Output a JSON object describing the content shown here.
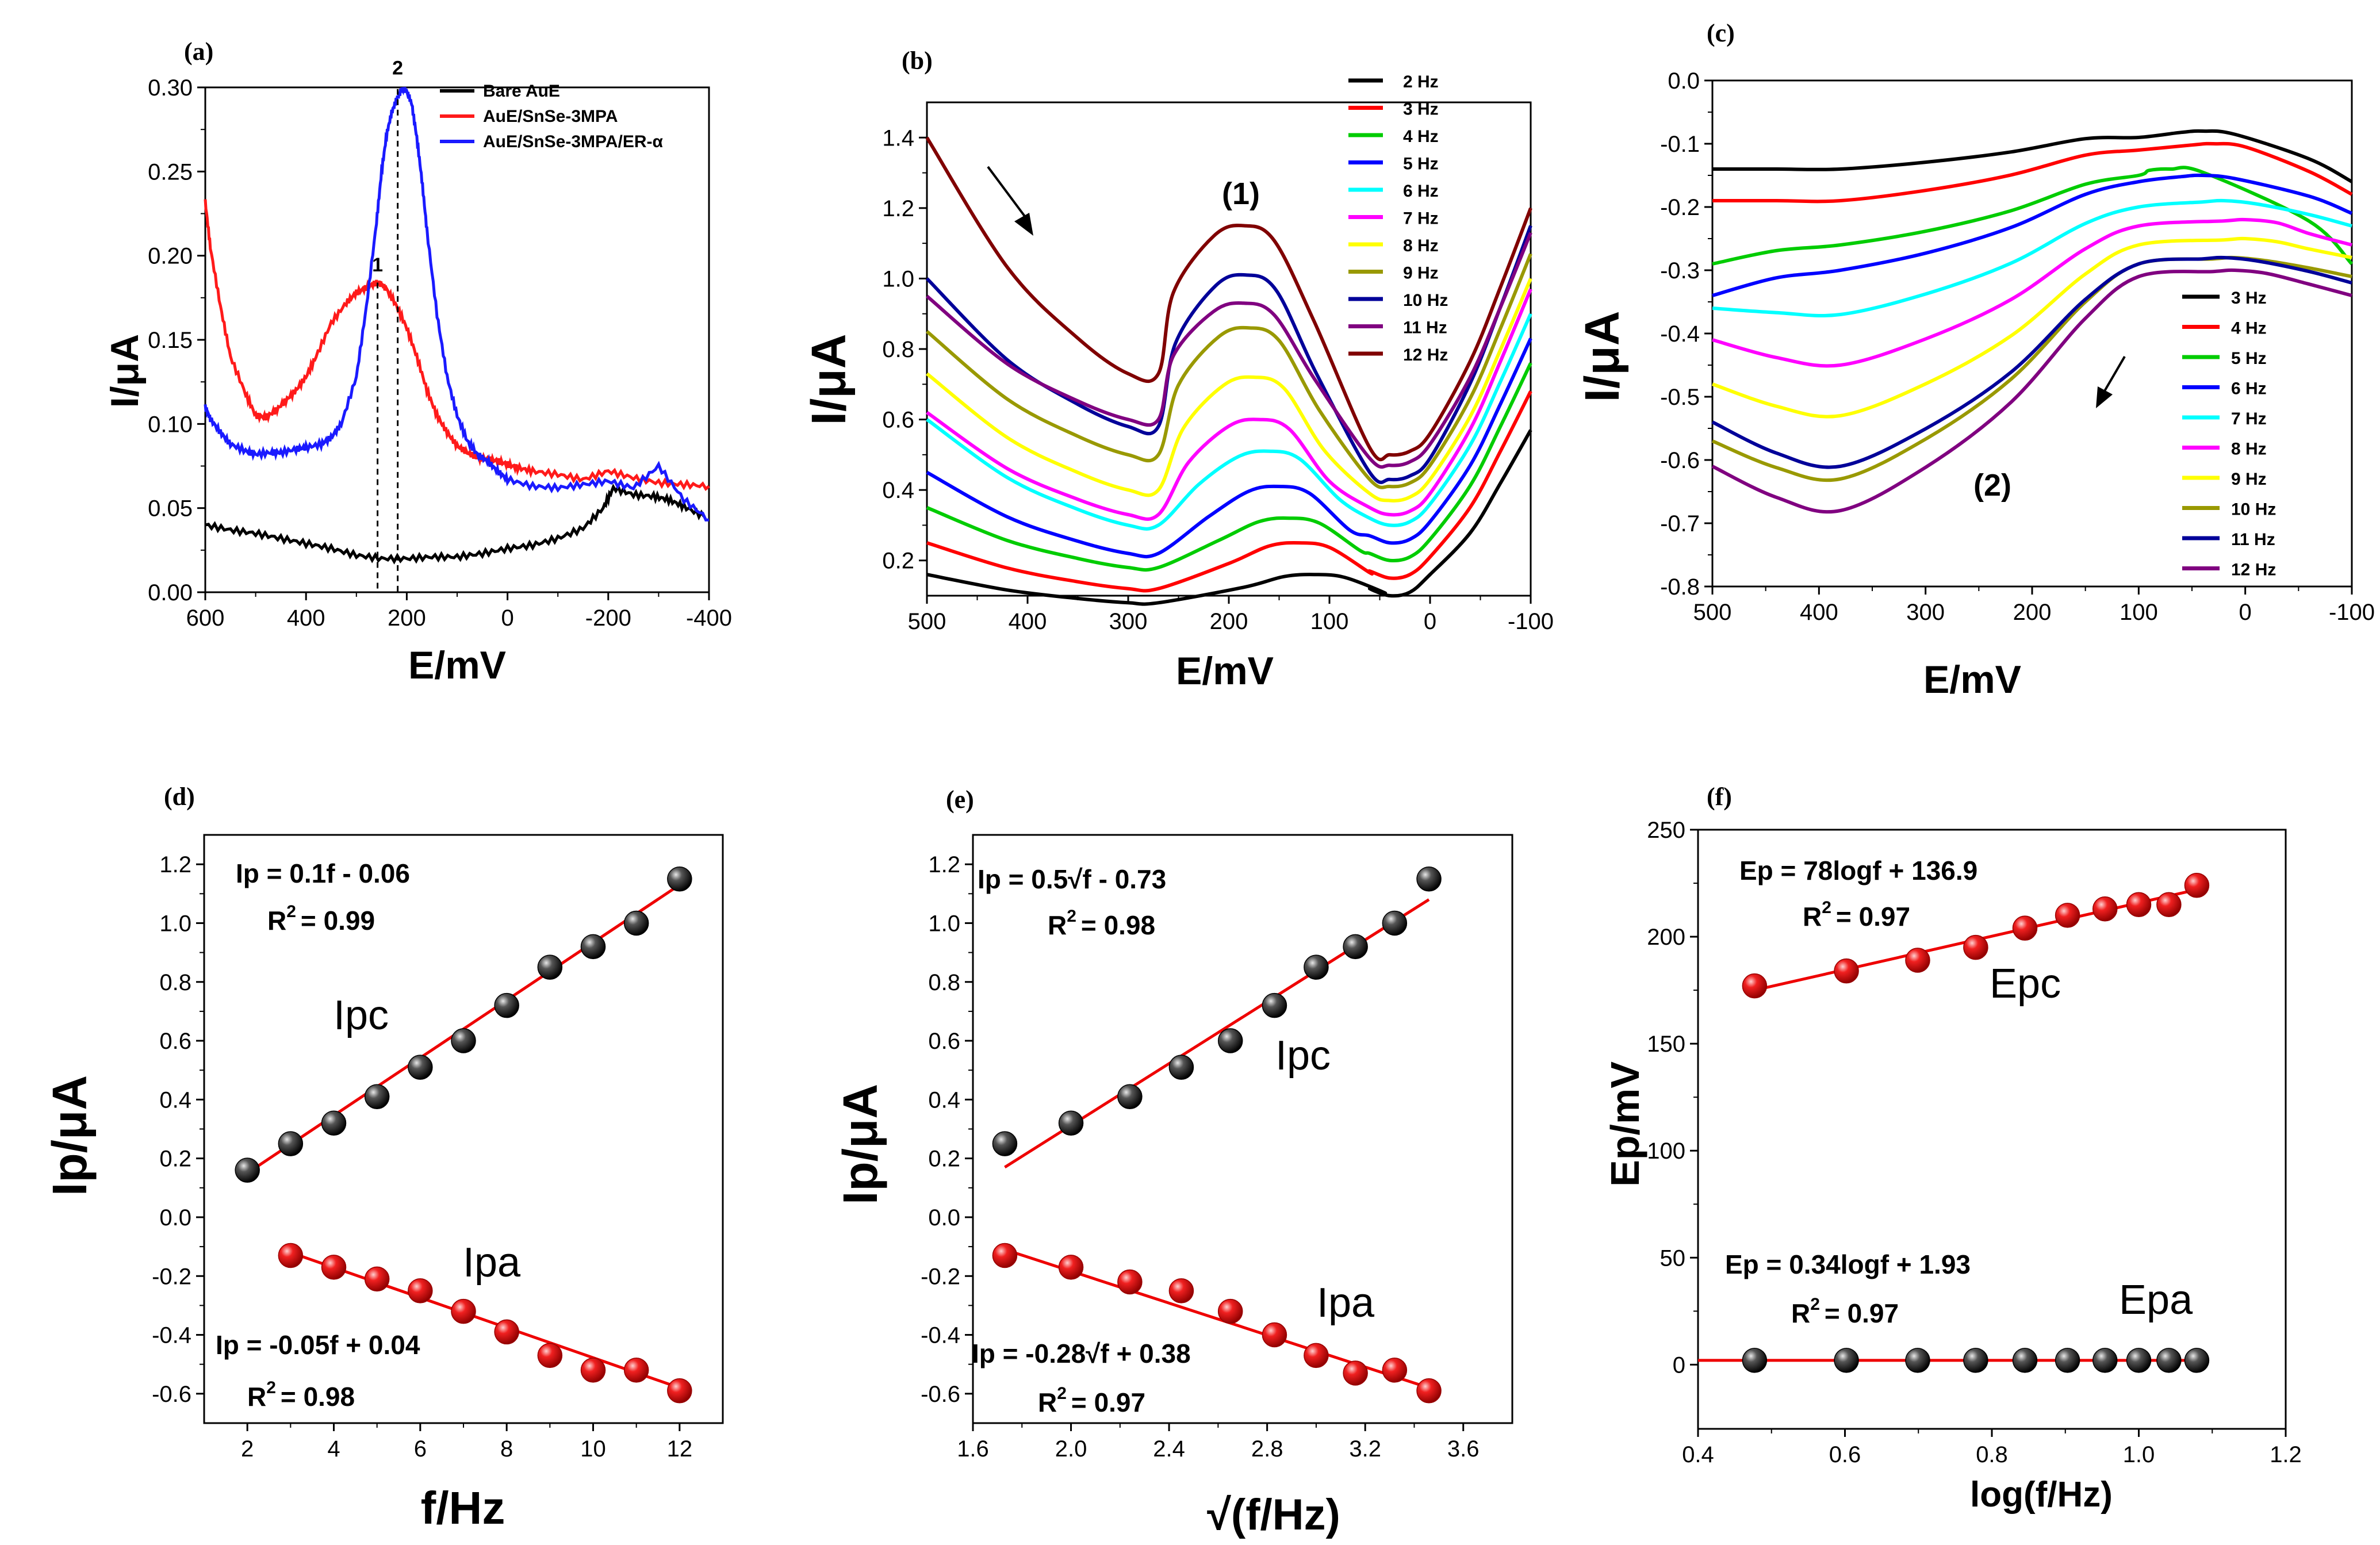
{
  "colors": {
    "black": "#000000",
    "red": "#ff1a1a",
    "blue": "#1a1aff",
    "ball_black": "#111111",
    "ball_red": "#e6191e",
    "fit": "#ee0000"
  },
  "chart_data": [
    {
      "panel": "(a)",
      "type": "line",
      "xlabel": "E/mV",
      "ylabel": "I/μA",
      "xlim": [
        600,
        -400
      ],
      "ylim": [
        0,
        0.3
      ],
      "xticks": [
        600,
        400,
        200,
        0,
        -200,
        -400
      ],
      "yticks": [
        0,
        0.05,
        0.1,
        0.15,
        0.2,
        0.25,
        0.3
      ],
      "ytick_labels": [
        "0.00",
        "0.05",
        "0.10",
        "0.15",
        "0.20",
        "0.25",
        "0.30"
      ],
      "series": [
        {
          "name": "Bare AuE",
          "color": "#000000",
          "x": [
            600,
            550,
            500,
            450,
            400,
            350,
            300,
            250,
            200,
            150,
            100,
            50,
            0,
            -50,
            -100,
            -150,
            -190,
            -210,
            -250,
            -290,
            -320,
            -350,
            -390
          ],
          "y": [
            0.04,
            0.037,
            0.035,
            0.032,
            0.029,
            0.026,
            0.022,
            0.02,
            0.02,
            0.021,
            0.021,
            0.023,
            0.026,
            0.028,
            0.032,
            0.038,
            0.05,
            0.062,
            0.058,
            0.057,
            0.055,
            0.051,
            0.045
          ]
        },
        {
          "name": "AuE/SnSe-3MPA",
          "color": "#ff1a1a",
          "x": [
            600,
            590,
            570,
            550,
            520,
            500,
            480,
            460,
            440,
            420,
            400,
            380,
            350,
            320,
            300,
            280,
            260,
            250,
            240,
            220,
            200,
            180,
            160,
            140,
            120,
            100,
            80,
            60,
            40,
            20,
            0,
            -20,
            -50,
            -100,
            -150,
            -200,
            -250,
            -300,
            -350,
            -400
          ],
          "y": [
            0.232,
            0.205,
            0.17,
            0.14,
            0.118,
            0.105,
            0.104,
            0.108,
            0.114,
            0.12,
            0.128,
            0.14,
            0.16,
            0.172,
            0.178,
            0.181,
            0.184,
            0.183,
            0.18,
            0.17,
            0.157,
            0.14,
            0.12,
            0.105,
            0.095,
            0.087,
            0.083,
            0.08,
            0.079,
            0.078,
            0.076,
            0.074,
            0.072,
            0.07,
            0.067,
            0.072,
            0.068,
            0.065,
            0.064,
            0.063
          ]
        },
        {
          "name": "AuE/SnSe-3MPA/ER-α",
          "color": "#1a1aff",
          "x": [
            600,
            590,
            570,
            550,
            520,
            500,
            470,
            450,
            420,
            400,
            370,
            350,
            330,
            300,
            280,
            260,
            250,
            240,
            230,
            220,
            210,
            200,
            190,
            180,
            170,
            160,
            140,
            120,
            100,
            80,
            60,
            40,
            20,
            0,
            -50,
            -100,
            -150,
            -200,
            -250,
            -300,
            -350,
            -400
          ],
          "y": [
            0.11,
            0.103,
            0.095,
            0.088,
            0.084,
            0.082,
            0.083,
            0.083,
            0.085,
            0.086,
            0.088,
            0.092,
            0.1,
            0.128,
            0.17,
            0.22,
            0.25,
            0.272,
            0.285,
            0.293,
            0.299,
            0.298,
            0.29,
            0.27,
            0.245,
            0.215,
            0.165,
            0.128,
            0.105,
            0.09,
            0.082,
            0.078,
            0.072,
            0.067,
            0.063,
            0.062,
            0.064,
            0.066,
            0.062,
            0.075,
            0.055,
            0.043
          ]
        }
      ],
      "legend": [
        "Bare AuE",
        "AuE/SnSe-3MPA",
        "AuE/SnSe-3MPA/ER-α"
      ],
      "annotations": [
        {
          "text": "1",
          "x": 258,
          "y": 0.188
        },
        {
          "text": "2",
          "x": 218,
          "y": 0.305
        }
      ],
      "guides": [
        {
          "x": 258,
          "y": 0.184
        },
        {
          "x": 218,
          "y": 0.299
        }
      ]
    },
    {
      "panel": "(b)",
      "type": "line",
      "xlabel": "E/mV",
      "ylabel": "I/μA",
      "xlim": [
        500,
        -100
      ],
      "ylim": [
        0.1,
        1.5
      ],
      "xticks": [
        500,
        400,
        300,
        200,
        100,
        0,
        -100
      ],
      "yticks": [
        0.2,
        0.4,
        0.6,
        0.8,
        1.0,
        1.2,
        1.4
      ],
      "ytick_labels": [
        "0.2",
        "0.4",
        "0.6",
        "0.8",
        "1.0",
        "1.2",
        "1.4"
      ],
      "legend": [
        "2 Hz",
        "3 Hz",
        "4 Hz",
        "5 Hz",
        "6 Hz",
        "7 Hz",
        "8 Hz",
        "9 Hz",
        "10 Hz",
        "11 Hz",
        "12 Hz"
      ],
      "series_colors": [
        "#000000",
        "#ff0000",
        "#00cc00",
        "#0000ff",
        "#00ffff",
        "#ff00ff",
        "#ffff00",
        "#999900",
        "#000099",
        "#800080",
        "#800000"
      ],
      "peak_E": [
        115,
        130,
        140,
        150,
        160,
        170,
        175,
        180,
        183,
        185,
        185
      ],
      "peak_I": [
        0.16,
        0.25,
        0.32,
        0.41,
        0.51,
        0.6,
        0.72,
        0.86,
        1.01,
        0.93,
        1.15
      ],
      "left_I": [
        0.16,
        0.25,
        0.35,
        0.45,
        0.6,
        0.62,
        0.73,
        0.85,
        1.0,
        0.95,
        1.4
      ],
      "base_I": [
        0.08,
        0.12,
        0.18,
        0.22,
        0.3,
        0.33,
        0.4,
        0.5,
        0.58,
        0.6,
        0.73
      ],
      "min_I": [
        0.1,
        0.15,
        0.2,
        0.25,
        0.3,
        0.33,
        0.37,
        0.41,
        0.43,
        0.47,
        0.5
      ],
      "right_I": [
        0.57,
        0.68,
        0.76,
        0.83,
        0.9,
        0.97,
        1.0,
        1.07,
        1.15,
        1.13,
        1.2
      ],
      "annotation": "(1)"
    },
    {
      "panel": "(c)",
      "type": "line",
      "xlabel": "E/mV",
      "ylabel": "I/μA",
      "xlim": [
        500,
        -100
      ],
      "ylim": [
        -0.8,
        0
      ],
      "xticks": [
        500,
        400,
        300,
        200,
        100,
        0,
        -100
      ],
      "yticks": [
        -0.8,
        -0.7,
        -0.6,
        -0.5,
        -0.4,
        -0.3,
        -0.2,
        -0.1,
        0
      ],
      "ytick_labels": [
        "-0.8",
        "-0.7",
        "-0.6",
        "-0.5",
        "-0.4",
        "-0.3",
        "-0.2",
        "-0.1",
        "0.0"
      ],
      "legend": [
        "3 Hz",
        "4 Hz",
        "5 Hz",
        "6 Hz",
        "7 Hz",
        "8 Hz",
        "9 Hz",
        "10 Hz",
        "11 Hz",
        "12 Hz"
      ],
      "series_colors": [
        "#000000",
        "#ff0000",
        "#00cc00",
        "#0000ff",
        "#00ffff",
        "#ff00ff",
        "#ffff00",
        "#999900",
        "#000099",
        "#800080"
      ],
      "start_I": [
        -0.14,
        -0.19,
        -0.29,
        -0.34,
        -0.36,
        -0.41,
        -0.48,
        -0.57,
        -0.54,
        -0.61
      ],
      "valley_I": [
        -0.14,
        -0.19,
        -0.26,
        -0.3,
        -0.37,
        -0.45,
        -0.53,
        -0.63,
        -0.61,
        -0.68
      ],
      "top_E": [
        40,
        30,
        70,
        40,
        20,
        0,
        0,
        10,
        20,
        10
      ],
      "top_I": [
        -0.08,
        -0.1,
        -0.14,
        -0.15,
        -0.19,
        -0.22,
        -0.25,
        -0.28,
        -0.28,
        -0.3
      ],
      "end_I": [
        -0.16,
        -0.18,
        -0.29,
        -0.21,
        -0.23,
        -0.26,
        -0.28,
        -0.31,
        -0.32,
        -0.34
      ],
      "annotation": "(2)"
    },
    {
      "panel": "(d)",
      "type": "scatter",
      "xlabel": "f/Hz",
      "ylabel": "Ip/μA",
      "xlim": [
        1,
        13
      ],
      "ylim": [
        -0.7,
        1.3
      ],
      "xticks": [
        2,
        4,
        6,
        8,
        10,
        12
      ],
      "yticks": [
        -0.6,
        -0.4,
        -0.2,
        0,
        0.2,
        0.4,
        0.6,
        0.8,
        1.0,
        1.2
      ],
      "ytick_labels": [
        "-0.6",
        "-0.4",
        "-0.2",
        "0.0",
        "0.2",
        "0.4",
        "0.6",
        "0.8",
        "1.0",
        "1.2"
      ],
      "series": [
        {
          "name": "Ipc",
          "color": "#111111",
          "x": [
            2,
            3,
            4,
            5,
            6,
            7,
            8,
            9,
            10,
            11,
            12
          ],
          "y": [
            0.16,
            0.25,
            0.32,
            0.41,
            0.51,
            0.6,
            0.72,
            0.85,
            0.92,
            1.0,
            1.15
          ],
          "fit": [
            [
              2,
              0.15
            ],
            [
              12,
              1.13
            ]
          ]
        },
        {
          "name": "Ipa",
          "color": "#e6191e",
          "x": [
            3,
            4,
            5,
            6,
            7,
            8,
            9,
            10,
            11,
            12
          ],
          "y": [
            -0.13,
            -0.17,
            -0.21,
            -0.25,
            -0.32,
            -0.39,
            -0.47,
            -0.52,
            -0.52,
            -0.59
          ],
          "fit": [
            [
              3,
              -0.12
            ],
            [
              12,
              -0.58
            ]
          ]
        }
      ],
      "eq_top": "Ip = 0.1f - 0.06",
      "r_top": "R",
      "r_top_val": "= 0.99",
      "eq_bot": "Ip = -0.05f + 0.04",
      "r_bot": "R",
      "r_bot_val": "= 0.98"
    },
    {
      "panel": "(e)",
      "type": "scatter",
      "xlabel": "√(f/Hz)",
      "ylabel": "Ip/μA",
      "xlim": [
        1.6,
        3.8
      ],
      "ylim": [
        -0.7,
        1.3
      ],
      "xticks": [
        1.6,
        2.0,
        2.4,
        2.8,
        3.2,
        3.6
      ],
      "xtick_labels": [
        "1.6",
        "2.0",
        "2.4",
        "2.8",
        "3.2",
        "3.6"
      ],
      "yticks": [
        -0.6,
        -0.4,
        -0.2,
        0,
        0.2,
        0.4,
        0.6,
        0.8,
        1.0,
        1.2
      ],
      "ytick_labels": [
        "-0.6",
        "-0.4",
        "-0.2",
        "0.0",
        "0.2",
        "0.4",
        "0.6",
        "0.8",
        "1.0",
        "1.2"
      ],
      "series": [
        {
          "name": "Ipc",
          "color": "#111111",
          "x": [
            1.73,
            2.0,
            2.24,
            2.45,
            2.65,
            2.83,
            3.0,
            3.16,
            3.32,
            3.46
          ],
          "y": [
            0.25,
            0.32,
            0.41,
            0.51,
            0.6,
            0.72,
            0.85,
            0.92,
            1.0,
            1.15
          ],
          "fit": [
            [
              1.73,
              0.17
            ],
            [
              3.46,
              1.08
            ]
          ]
        },
        {
          "name": "Ipa",
          "color": "#e6191e",
          "x": [
            1.73,
            2.0,
            2.24,
            2.45,
            2.65,
            2.83,
            3.0,
            3.16,
            3.32,
            3.46
          ],
          "y": [
            -0.13,
            -0.17,
            -0.22,
            -0.25,
            -0.32,
            -0.4,
            -0.47,
            -0.53,
            -0.52,
            -0.59
          ],
          "fit": [
            [
              1.73,
              -0.11
            ],
            [
              3.46,
              -0.58
            ]
          ]
        }
      ],
      "eq_top": "Ip = 0.5√f - 0.73",
      "r_top": "R",
      "r_top_val": "= 0.98",
      "eq_bot": "Ip = -0.28√f + 0.38",
      "r_bot": "R",
      "r_bot_val": "= 0.97"
    },
    {
      "panel": "(f)",
      "type": "scatter",
      "xlabel": "log(f/Hz)",
      "ylabel": "Ep/mV",
      "xlim": [
        0.4,
        1.2
      ],
      "ylim": [
        -30,
        250
      ],
      "xticks": [
        0.4,
        0.6,
        0.8,
        1.0,
        1.2
      ],
      "xtick_labels": [
        "0.4",
        "0.6",
        "0.8",
        "1.0",
        "1.2"
      ],
      "yticks": [
        0,
        50,
        100,
        150,
        200,
        250
      ],
      "ytick_labels": [
        "0",
        "50",
        "100",
        "150",
        "200",
        "250"
      ],
      "series": [
        {
          "name": "Epc",
          "color": "#e6191e",
          "x": [
            0.477,
            0.602,
            0.699,
            0.778,
            0.845,
            0.903,
            0.954,
            1.0,
            1.041,
            1.079
          ],
          "y": [
            177,
            184,
            189,
            195,
            204,
            210,
            213,
            215,
            215,
            224
          ],
          "fit": [
            [
              0.477,
              175
            ],
            [
              1.079,
              222
            ]
          ]
        },
        {
          "name": "Epa",
          "color": "#111111",
          "x": [
            0.477,
            0.602,
            0.699,
            0.778,
            0.845,
            0.903,
            0.954,
            1.0,
            1.041,
            1.079
          ],
          "y": [
            2,
            2,
            2,
            2,
            2,
            2,
            2,
            2,
            2,
            2
          ],
          "fit": [
            [
              0.4,
              2
            ],
            [
              1.08,
              2
            ]
          ]
        }
      ],
      "eq_top": "Ep = 78logf + 136.9",
      "r_top": "R",
      "r_top_val": "= 0.97",
      "eq_bot": "Ep = 0.34logf + 1.93",
      "r_bot": "R",
      "r_bot_val": "= 0.97"
    }
  ],
  "superscript": "2"
}
